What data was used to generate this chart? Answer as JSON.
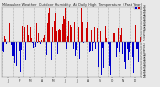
{
  "background_color": "#e8e8e8",
  "plot_bg_color": "#e8e8e8",
  "bar_color_positive": "#cc0000",
  "bar_color_negative": "#0000cc",
  "ylim": [
    -28,
    28
  ],
  "ytick_values": [
    2,
    4,
    6,
    8,
    10,
    12,
    14,
    16,
    18,
    20,
    22,
    24,
    26,
    28
  ],
  "num_points": 365,
  "grid_color": "#aaaaaa",
  "grid_interval": 28,
  "seed": 42,
  "bar_width": 0.8,
  "title_fontsize": 2.5,
  "tick_fontsize": 2.2
}
